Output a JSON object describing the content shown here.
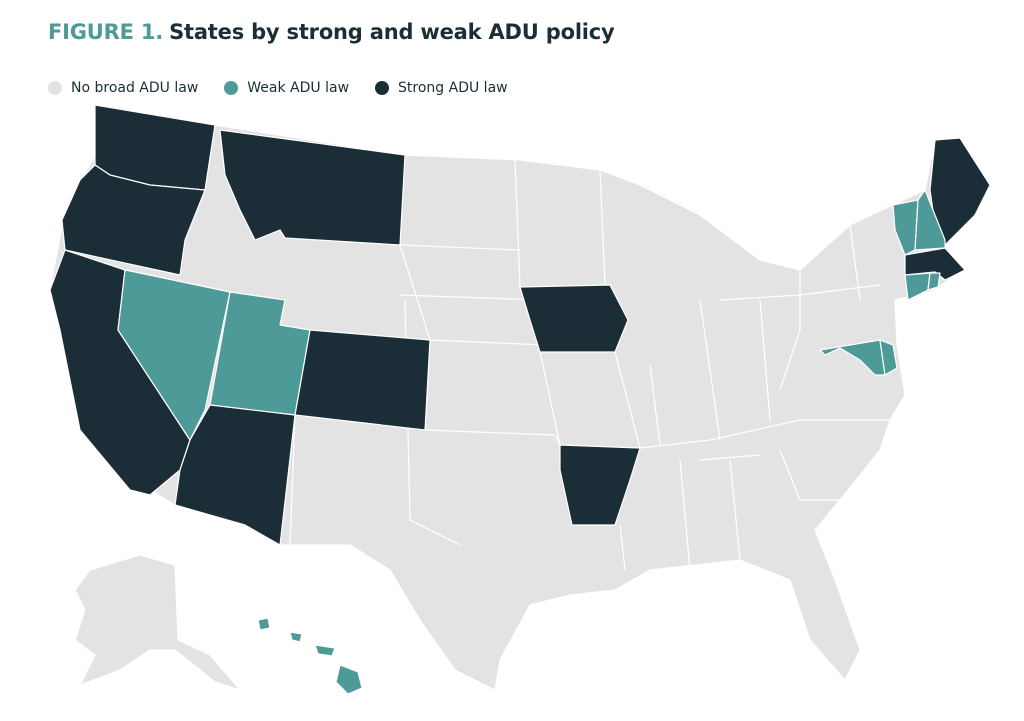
{
  "header": {
    "label": "FIGURE 1.",
    "title": "States by strong and weak ADU policy"
  },
  "legend": {
    "items": [
      {
        "name": "No broad ADU law",
        "color": "#e3e3e3"
      },
      {
        "name": "Weak ADU law",
        "color": "#4d9a98"
      },
      {
        "name": "Strong ADU law",
        "color": "#1b2e38"
      }
    ]
  }
}
